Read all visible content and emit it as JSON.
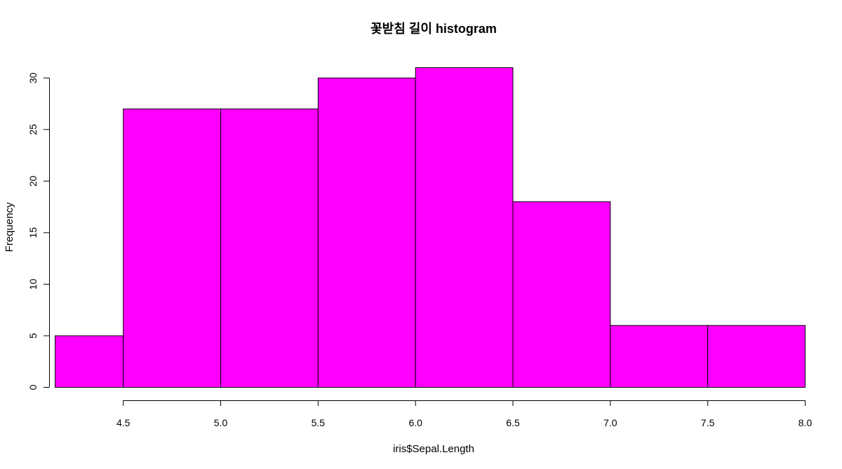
{
  "chart_data": {
    "type": "bar",
    "title": "꽃받침 길이 histogram",
    "xlabel": "iris$Sepal.Length",
    "ylabel": "Frequency",
    "bins": [
      {
        "from": 4.15,
        "to": 4.5,
        "count": 5
      },
      {
        "from": 4.5,
        "to": 5.0,
        "count": 27
      },
      {
        "from": 5.0,
        "to": 5.5,
        "count": 27
      },
      {
        "from": 5.5,
        "to": 6.0,
        "count": 30
      },
      {
        "from": 6.0,
        "to": 6.5,
        "count": 31
      },
      {
        "from": 6.5,
        "to": 7.0,
        "count": 18
      },
      {
        "from": 7.0,
        "to": 7.5,
        "count": 6
      },
      {
        "from": 7.5,
        "to": 8.0,
        "count": 6
      }
    ],
    "x_ticks": [
      "4.5",
      "5.0",
      "5.5",
      "6.0",
      "6.5",
      "7.0",
      "7.5",
      "8.0"
    ],
    "y_ticks": [
      "0",
      "5",
      "10",
      "15",
      "20",
      "25",
      "30"
    ],
    "xlim": [
      4.15,
      8.0
    ],
    "ylim": [
      0,
      31
    ],
    "bar_color": "#ff00ff",
    "grid": false,
    "legend": "none"
  }
}
